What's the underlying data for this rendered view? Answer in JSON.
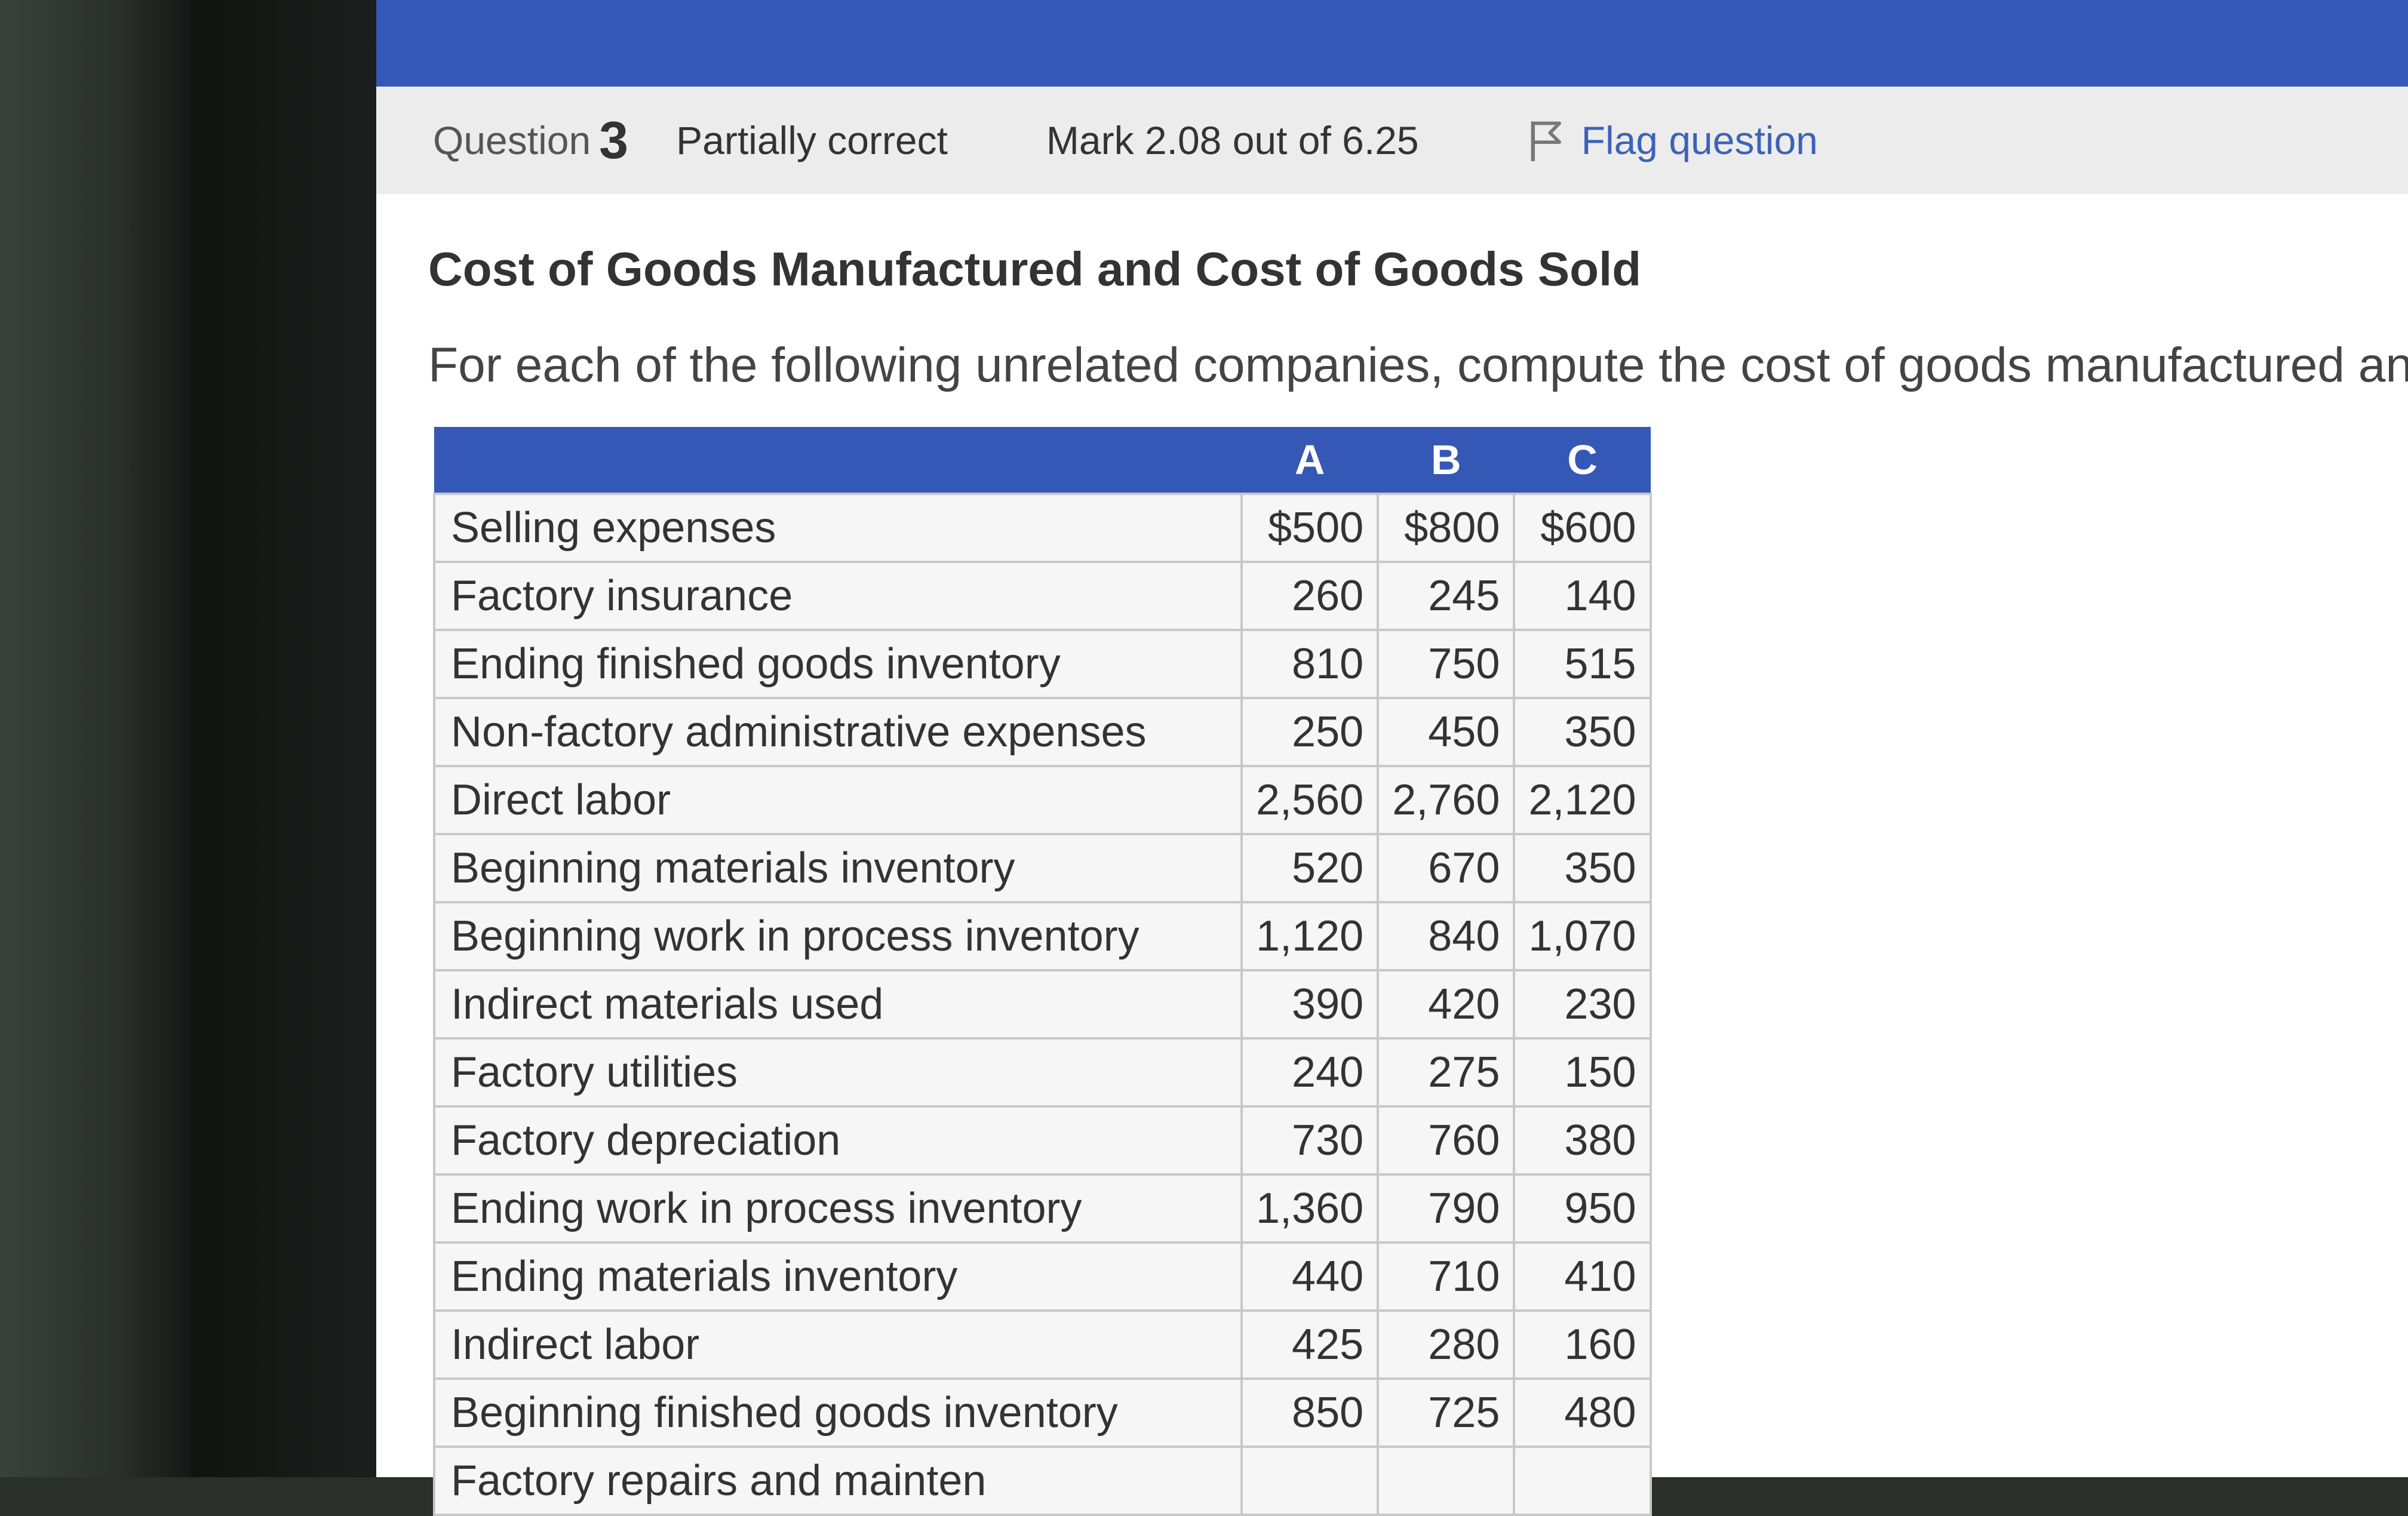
{
  "question": {
    "label": "Question",
    "number": "3",
    "state": "Partially correct",
    "mark": "Mark 2.08 out of 6.25",
    "flag_label": "Flag question"
  },
  "content": {
    "title": "Cost of Goods Manufactured and Cost of Goods Sold",
    "intro": "For each of the following unrelated companies, compute the cost of goods manufactured and"
  },
  "table": {
    "headers": [
      "",
      "A",
      "B",
      "C"
    ],
    "rows": [
      {
        "label": "Selling expenses",
        "a": "$500",
        "b": "$800",
        "c": "$600"
      },
      {
        "label": "Factory insurance",
        "a": "260",
        "b": "245",
        "c": "140"
      },
      {
        "label": "Ending finished goods inventory",
        "a": "810",
        "b": "750",
        "c": "515"
      },
      {
        "label": "Non-factory administrative expenses",
        "a": "250",
        "b": "450",
        "c": "350"
      },
      {
        "label": "Direct labor",
        "a": "2,560",
        "b": "2,760",
        "c": "2,120"
      },
      {
        "label": "Beginning materials inventory",
        "a": "520",
        "b": "670",
        "c": "350"
      },
      {
        "label": "Beginning work in process inventory",
        "a": "1,120",
        "b": "840",
        "c": "1,070"
      },
      {
        "label": "Indirect materials used",
        "a": "390",
        "b": "420",
        "c": "230"
      },
      {
        "label": "Factory utilities",
        "a": "240",
        "b": "275",
        "c": "150"
      },
      {
        "label": "Factory depreciation",
        "a": "730",
        "b": "760",
        "c": "380"
      },
      {
        "label": "Ending work in process inventory",
        "a": "1,360",
        "b": "790",
        "c": "950"
      },
      {
        "label": "Ending materials inventory",
        "a": "440",
        "b": "710",
        "c": "410"
      },
      {
        "label": "Indirect labor",
        "a": "425",
        "b": "280",
        "c": "160"
      },
      {
        "label": "Beginning finished goods inventory",
        "a": "850",
        "b": "725",
        "c": "480"
      },
      {
        "label": "Factory repairs and mainten",
        "a": "",
        "b": "",
        "c": ""
      }
    ]
  },
  "colors": {
    "header_blue": "#3558b7",
    "flag_link": "#3d62b8"
  },
  "icons": {
    "flag": "flag-icon"
  }
}
